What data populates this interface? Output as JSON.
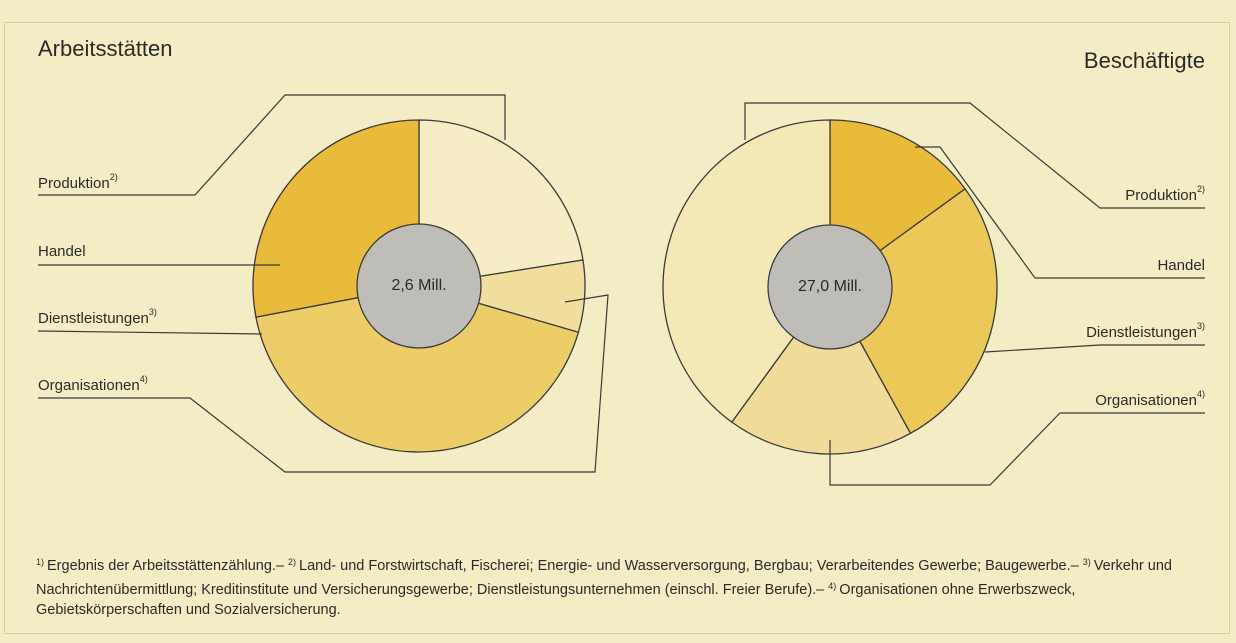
{
  "chart_data": [
    {
      "type": "pie",
      "title": "Arbeitsstätten",
      "center_label": "2,6 Mill.",
      "categories": [
        "Produktion",
        "Handel",
        "Dienstleistungen",
        "Organisationen"
      ],
      "category_notes": [
        "2)",
        null,
        "3)",
        "4)"
      ],
      "values": [
        22.5,
        28,
        42.5,
        7
      ],
      "colors": [
        "#f6edc6",
        "#e8bb3a",
        "#edcd68",
        "#f1de9c"
      ]
    },
    {
      "type": "pie",
      "title": "Beschäftigte",
      "center_label": "27,0 Mill.",
      "categories": [
        "Produktion",
        "Handel",
        "Dienstleistungen",
        "Organisationen"
      ],
      "category_notes": [
        "2)",
        null,
        "3)",
        "4)"
      ],
      "values": [
        40,
        15,
        27,
        18
      ],
      "colors": [
        "#f4e8b6",
        "#e8bb3a",
        "#ecc858",
        "#f0dc98"
      ]
    }
  ],
  "footnotes": [
    {
      "mark": "1)",
      "text": "Ergebnis der Arbeitsstättenzählung.–"
    },
    {
      "mark": "2)",
      "text": "Land- und Forstwirtschaft, Fischerei; Energie- und Wasserversorgung, Bergbau; Verarbeitendes Gewerbe; Baugewerbe.–"
    },
    {
      "mark": "3)",
      "text": "Verkehr und Nachrichtenübermittlung; Kreditinstitute und Versicherungsgewerbe; Dienstleistungsunternehmen (einschl. Freier Berufe).–"
    },
    {
      "mark": "4)",
      "text": "Organisationen ohne Erwerbszweck, Gebietskörperschaften und Sozialversicherung."
    }
  ]
}
